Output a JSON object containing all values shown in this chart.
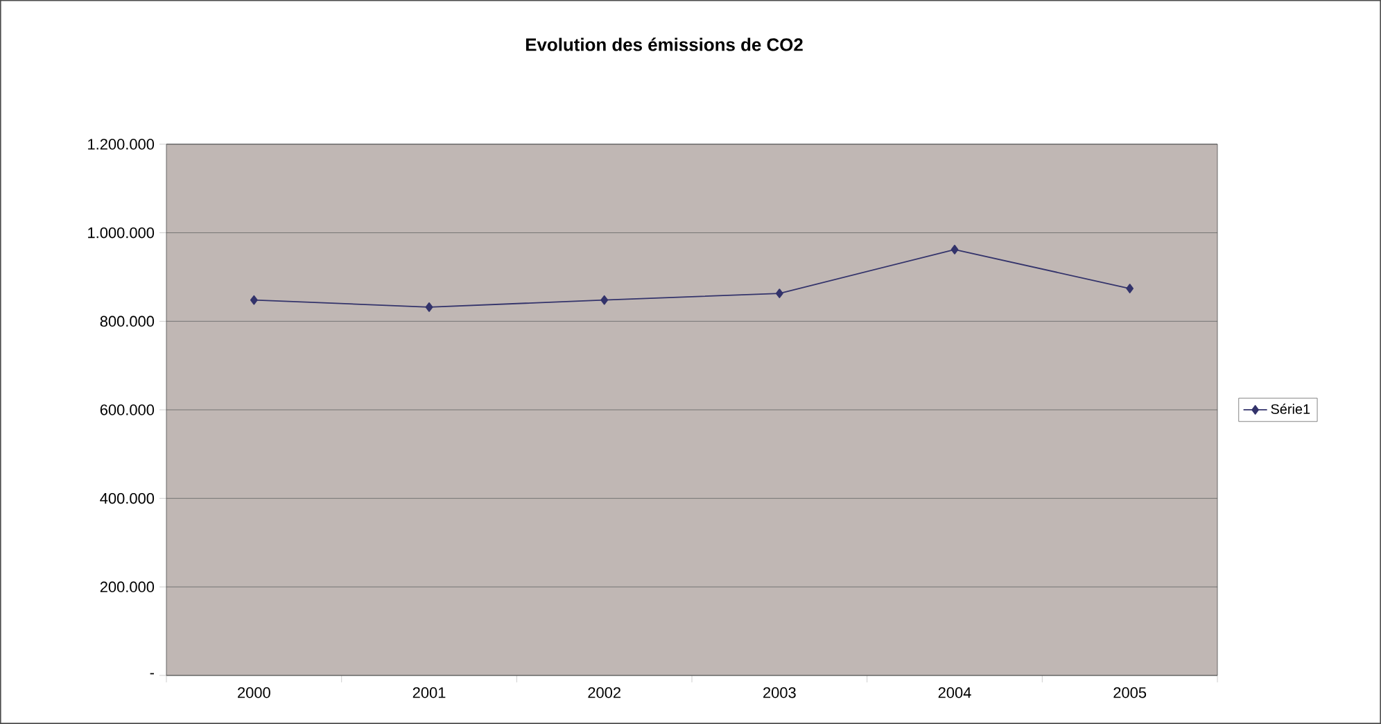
{
  "chart_data": {
    "type": "line",
    "title": "Evolution des émissions de CO2",
    "categories": [
      "2000",
      "2001",
      "2002",
      "2003",
      "2004",
      "2005"
    ],
    "series": [
      {
        "name": "Série1",
        "color": "#33336b",
        "values": [
          848000,
          832000,
          848000,
          863000,
          962000,
          874000
        ]
      }
    ],
    "ylim": [
      0,
      1200000
    ],
    "yticks": [
      {
        "value": 0,
        "label": "-"
      },
      {
        "value": 200000,
        "label": "200.000"
      },
      {
        "value": 400000,
        "label": "400.000"
      },
      {
        "value": 600000,
        "label": "600.000"
      },
      {
        "value": 800000,
        "label": "800.000"
      },
      {
        "value": 1000000,
        "label": "1.000.000"
      },
      {
        "value": 1200000,
        "label": "1.200.000"
      }
    ],
    "grid": "y",
    "legend": "right",
    "marker": "diamond",
    "line_style": "solid"
  }
}
